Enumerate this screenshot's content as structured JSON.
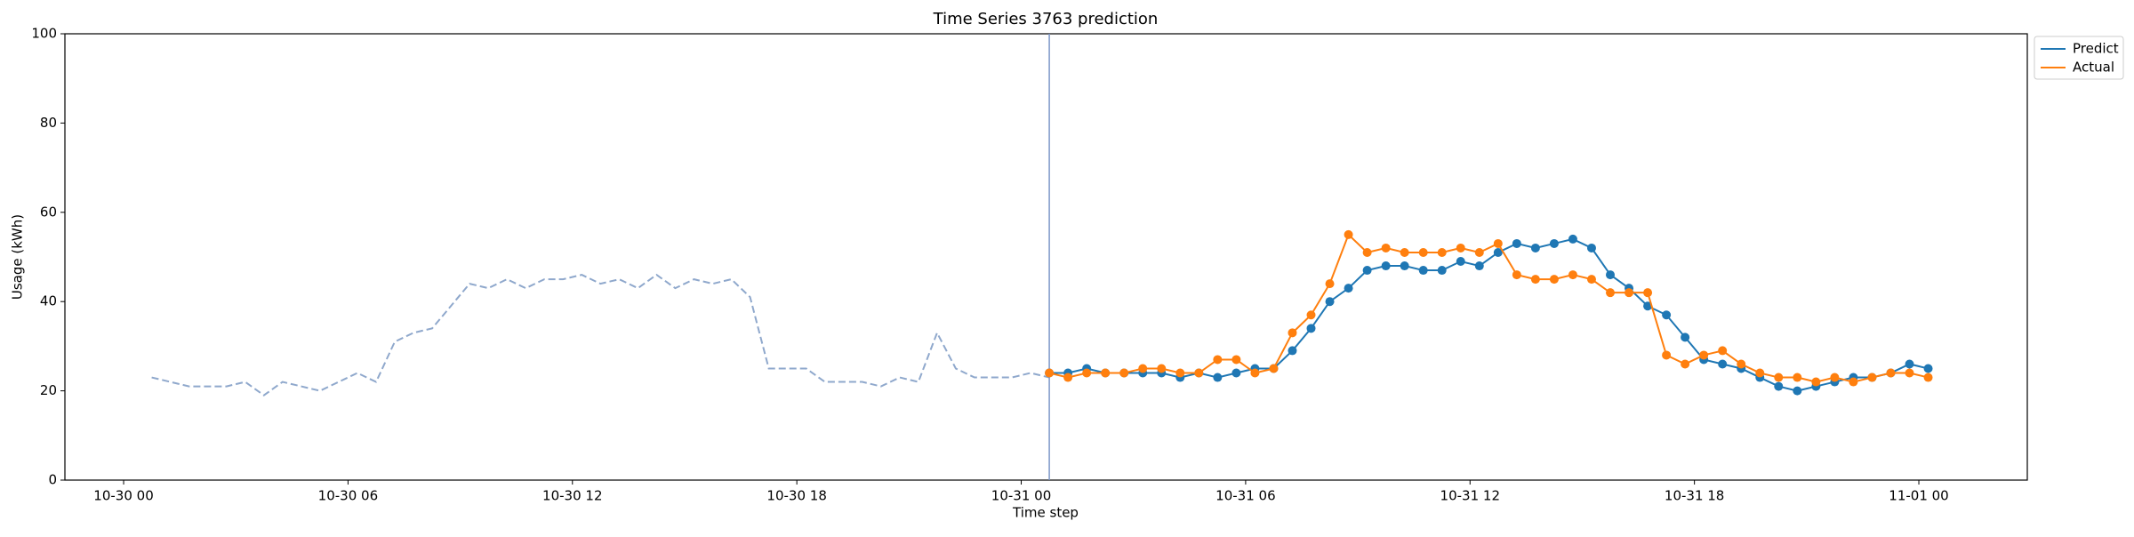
{
  "chart_data": {
    "type": "line",
    "title": "Time Series 3763 prediction",
    "xlabel": "Time step",
    "ylabel": "Usage (kWh)",
    "xlim": [
      -1.57,
      50.9
    ],
    "ylim": [
      0,
      100
    ],
    "xticks": [
      {
        "value": 0,
        "label": "10-30 00"
      },
      {
        "value": 6,
        "label": "10-30 06"
      },
      {
        "value": 12,
        "label": "10-30 12"
      },
      {
        "value": 18,
        "label": "10-30 18"
      },
      {
        "value": 24,
        "label": "10-31 00"
      },
      {
        "value": 30,
        "label": "10-31 06"
      },
      {
        "value": 36,
        "label": "10-31 12"
      },
      {
        "value": 42,
        "label": "10-31 18"
      },
      {
        "value": 48,
        "label": "11-01 00"
      }
    ],
    "yticks": [
      0,
      20,
      40,
      60,
      80,
      100
    ],
    "legend": "upper right outside",
    "vline_x": 24.75,
    "vline_color": "#7b96c8",
    "history": {
      "color": "#8fa8cc",
      "x": [
        0.75,
        1.25,
        1.75,
        2.25,
        2.75,
        3.25,
        3.75,
        4.25,
        4.75,
        5.25,
        5.75,
        6.25,
        6.75,
        7.25,
        7.75,
        8.25,
        8.75,
        9.25,
        9.75,
        10.25,
        10.75,
        11.25,
        11.75,
        12.25,
        12.75,
        13.25,
        13.75,
        14.25,
        14.75,
        15.25,
        15.75,
        16.25,
        16.75,
        17.25,
        17.75,
        18.25,
        18.75,
        19.25,
        19.75,
        20.25,
        20.75,
        21.25,
        21.75,
        22.25,
        22.75,
        23.25,
        23.75,
        24.25,
        24.75
      ],
      "values": [
        23,
        22,
        21,
        21,
        21,
        22,
        19,
        22,
        21,
        20,
        22,
        24,
        22,
        31,
        33,
        34,
        39,
        44,
        43,
        45,
        43,
        45,
        45,
        46,
        44,
        45,
        43,
        46,
        43,
        45,
        44,
        45,
        41,
        25,
        25,
        25,
        22,
        22,
        22,
        21,
        23,
        22,
        33,
        25,
        23,
        23,
        23,
        24,
        23
      ]
    },
    "x": [
      24.75,
      25.25,
      25.75,
      26.25,
      26.75,
      27.25,
      27.75,
      28.25,
      28.75,
      29.25,
      29.75,
      30.25,
      30.75,
      31.25,
      31.75,
      32.25,
      32.75,
      33.25,
      33.75,
      34.25,
      34.75,
      35.25,
      35.75,
      36.25,
      36.75,
      37.25,
      37.75,
      38.25,
      38.75,
      39.25,
      39.75,
      40.25,
      40.75,
      41.25,
      41.75,
      42.25,
      42.75,
      43.25,
      43.75,
      44.25,
      44.75,
      45.25,
      45.75,
      46.25,
      46.75,
      47.25,
      47.75,
      48.25
    ],
    "series": [
      {
        "name": "Predict",
        "color": "#1f77b4",
        "values": [
          24,
          24,
          25,
          24,
          24,
          24,
          24,
          23,
          24,
          23,
          24,
          25,
          25,
          29,
          34,
          40,
          43,
          47,
          48,
          48,
          47,
          47,
          49,
          48,
          51,
          53,
          52,
          53,
          54,
          52,
          46,
          43,
          39,
          37,
          32,
          27,
          26,
          25,
          23,
          21,
          20,
          21,
          22,
          23,
          23,
          24,
          26,
          25
        ]
      },
      {
        "name": "Actual",
        "color": "#ff7f0e",
        "values": [
          24,
          23,
          24,
          24,
          24,
          25,
          25,
          24,
          24,
          27,
          27,
          24,
          25,
          33,
          37,
          44,
          55,
          51,
          52,
          51,
          51,
          51,
          52,
          51,
          53,
          46,
          45,
          45,
          46,
          45,
          42,
          42,
          42,
          28,
          26,
          28,
          29,
          26,
          24,
          23,
          23,
          22,
          23,
          22,
          23,
          24,
          24,
          23
        ]
      }
    ]
  }
}
